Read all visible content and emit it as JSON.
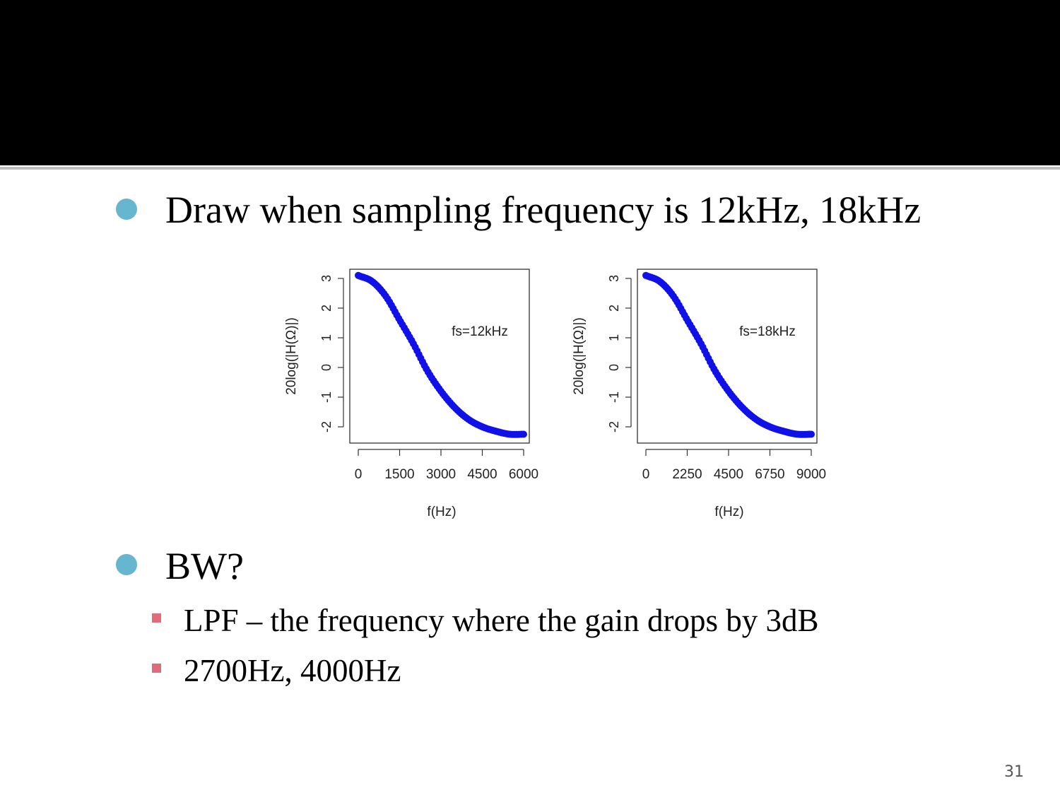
{
  "slide": {
    "bullets": [
      {
        "text": "Draw when sampling frequency is 12kHz, 18kHz",
        "level": 1
      },
      {
        "text": "BW?",
        "level": 1
      },
      {
        "text": "LPF – the frequency where the gain drops by 3dB",
        "level": 2
      },
      {
        "text": "2700Hz, 4000Hz",
        "level": 2
      }
    ],
    "page_number": "31",
    "colors": {
      "title_band": "#000000",
      "bullet_l1": "#67b6cf",
      "bullet_l2": "#e06b7a",
      "series": "#1010e8"
    }
  },
  "chart_data": [
    {
      "type": "scatter",
      "annotation": "fs=12kHz",
      "xlabel": "f(Hz)",
      "ylabel": "20log(|H(Ω)|)",
      "x_ticks": [
        "0",
        "1500",
        "3000",
        "4500",
        "6000"
      ],
      "y_ticks": [
        "-2",
        "-1",
        "0",
        "1",
        "2",
        "3"
      ],
      "xlim": [
        0,
        6000
      ],
      "ylim": [
        -2.3,
        3.15
      ],
      "series": [
        {
          "x": [
            0,
            500,
            1000,
            1500,
            2000,
            2500,
            3000,
            3500,
            4000,
            4500,
            5000,
            5500,
            6000
          ],
          "values": [
            3.1,
            2.9,
            2.4,
            1.6,
            0.8,
            -0.1,
            -0.8,
            -1.35,
            -1.75,
            -2.0,
            -2.15,
            -2.25,
            -2.25
          ]
        }
      ]
    },
    {
      "type": "scatter",
      "annotation": "fs=18kHz",
      "xlabel": "f(Hz)",
      "ylabel": "20log(|H(Ω)|)",
      "x_ticks": [
        "0",
        "2250",
        "4500",
        "6750",
        "9000"
      ],
      "y_ticks": [
        "-2",
        "-1",
        "0",
        "1",
        "2",
        "3"
      ],
      "xlim": [
        0,
        9000
      ],
      "ylim": [
        -2.3,
        3.15
      ],
      "series": [
        {
          "x": [
            0,
            750,
            1500,
            2250,
            3000,
            3750,
            4500,
            5250,
            6000,
            6750,
            7500,
            8250,
            9000
          ],
          "values": [
            3.1,
            2.9,
            2.4,
            1.6,
            0.8,
            -0.1,
            -0.8,
            -1.35,
            -1.75,
            -2.0,
            -2.15,
            -2.25,
            -2.25
          ]
        }
      ]
    }
  ]
}
